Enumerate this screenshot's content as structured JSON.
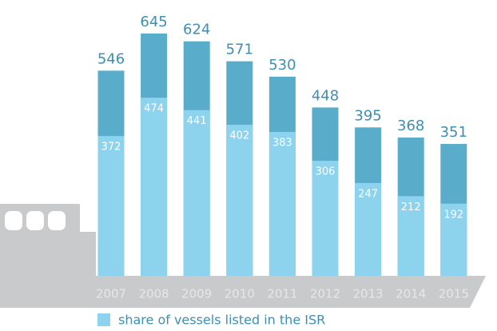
{
  "chart_data": {
    "type": "bar",
    "categories": [
      "2007",
      "2008",
      "2009",
      "2010",
      "2011",
      "2012",
      "2013",
      "2014",
      "2015"
    ],
    "totals": [
      546,
      645,
      624,
      571,
      530,
      448,
      395,
      368,
      351
    ],
    "total_color": "#5aaccb",
    "series": [
      {
        "name": "share of vessels listed in the ISR",
        "color": "#8dd3ee",
        "values": [
          372,
          474,
          441,
          402,
          383,
          306,
          247,
          212,
          192
        ]
      }
    ]
  }
}
